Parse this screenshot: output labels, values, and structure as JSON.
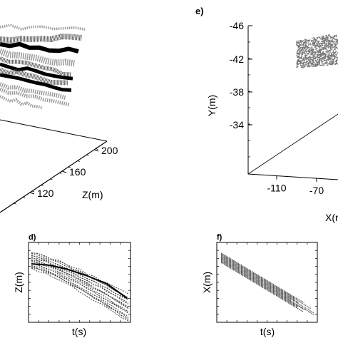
{
  "chart_data": [
    {
      "panel": "",
      "type": "scatter",
      "title": "",
      "zlabel": "Z(m)",
      "z_ticks": [
        "120",
        "160",
        "200"
      ],
      "colors": {
        "dense": "#000000",
        "medium": "#555555",
        "light": "#999999"
      }
    },
    {
      "panel": "e)",
      "type": "scatter",
      "title": "",
      "ylabel": "Y(m)",
      "y_ticks": [
        "-46",
        "-42",
        "-38",
        "-34"
      ],
      "xlabel": "X(m)",
      "x_ticks": [
        "-110",
        "-70"
      ],
      "colors": {
        "points": "#777777"
      }
    },
    {
      "panel": "d)",
      "type": "line",
      "title": "",
      "xlabel": "t(s)",
      "ylabel": "Z(m)",
      "series_count": 18,
      "colors": {
        "lines": "#444444",
        "highlight": "#000000"
      }
    },
    {
      "panel": "f)",
      "type": "line",
      "title": "",
      "xlabel": "t(s)",
      "ylabel": "X(m)",
      "series_count": 12,
      "colors": {
        "lines": "#555555"
      }
    }
  ]
}
